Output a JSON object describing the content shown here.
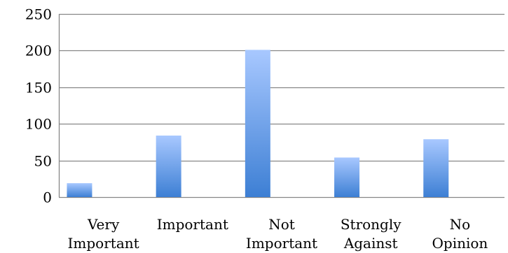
{
  "chart_data": {
    "type": "bar",
    "title": "",
    "xlabel": "",
    "ylabel": "",
    "categories": [
      [
        "Very",
        "Important"
      ],
      [
        "Important"
      ],
      [
        "Not",
        "Important"
      ],
      [
        "Strongly",
        "Against"
      ],
      [
        "No",
        "Opinion"
      ]
    ],
    "values": [
      19,
      84,
      201,
      54,
      79
    ],
    "ylim": [
      0,
      250
    ],
    "yticks": [
      0,
      50,
      100,
      150,
      200,
      250
    ],
    "grid": true,
    "legend": "none",
    "colors": {
      "bar_top": "#a8c8ff",
      "bar_bottom": "#3d7fd4",
      "grid": "#878787",
      "axis": "#878787"
    }
  }
}
